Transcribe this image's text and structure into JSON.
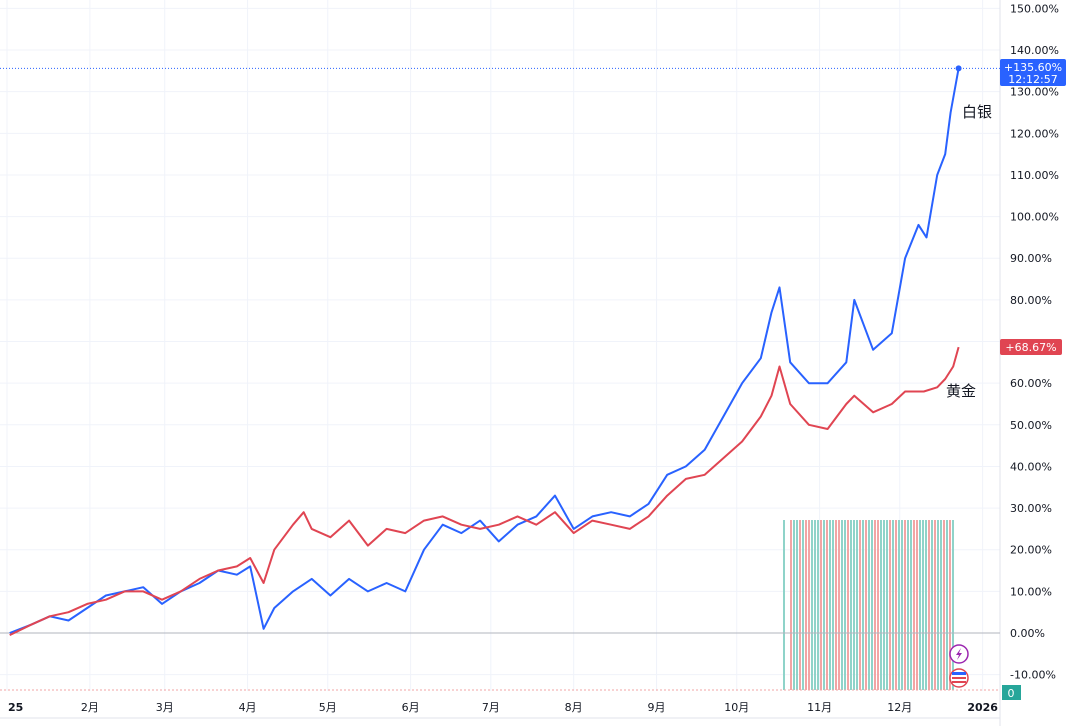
{
  "chart_data": {
    "type": "line",
    "title": "",
    "xlabel": "",
    "ylabel": "",
    "ylim": [
      -14,
      150
    ],
    "grid": true,
    "y_ticks": [
      "150.00%",
      "140.00%",
      "130.00%",
      "120.00%",
      "110.00%",
      "100.00%",
      "90.00%",
      "80.00%",
      "70.00%",
      "60.00%",
      "50.00%",
      "40.00%",
      "30.00%",
      "20.00%",
      "10.00%",
      "0.00%",
      "-10.00%"
    ],
    "y_tick_values": [
      150,
      140,
      130,
      120,
      110,
      100,
      90,
      80,
      70,
      60,
      50,
      40,
      30,
      20,
      10,
      0,
      -10
    ],
    "x_ticks": [
      {
        "label": "25",
        "date": "2025-01-01"
      },
      {
        "label": "2月",
        "date": "2025-02-01"
      },
      {
        "label": "3月",
        "date": "2025-03-01"
      },
      {
        "label": "4月",
        "date": "2025-04-01"
      },
      {
        "label": "5月",
        "date": "2025-05-01"
      },
      {
        "label": "6月",
        "date": "2025-06-01"
      },
      {
        "label": "7月",
        "date": "2025-07-01"
      },
      {
        "label": "8月",
        "date": "2025-08-01"
      },
      {
        "label": "9月",
        "date": "2025-09-01"
      },
      {
        "label": "10月",
        "date": "2025-10-01"
      },
      {
        "label": "11月",
        "date": "2025-11-01"
      },
      {
        "label": "12月",
        "date": "2025-12-01"
      },
      {
        "label": "2026",
        "date": "2026-01-01"
      }
    ],
    "series": [
      {
        "name": "白银",
        "color": "#2962ff",
        "last_label": "+135.60%",
        "last_time": "12:12:57",
        "dates": [
          "2025-01-02",
          "2025-01-10",
          "2025-01-17",
          "2025-01-24",
          "2025-01-31",
          "2025-02-07",
          "2025-02-14",
          "2025-02-21",
          "2025-02-28",
          "2025-03-07",
          "2025-03-14",
          "2025-03-21",
          "2025-03-28",
          "2025-04-02",
          "2025-04-04",
          "2025-04-07",
          "2025-04-11",
          "2025-04-18",
          "2025-04-25",
          "2025-05-02",
          "2025-05-09",
          "2025-05-16",
          "2025-05-23",
          "2025-05-30",
          "2025-06-06",
          "2025-06-13",
          "2025-06-20",
          "2025-06-27",
          "2025-07-04",
          "2025-07-11",
          "2025-07-18",
          "2025-07-25",
          "2025-08-01",
          "2025-08-08",
          "2025-08-15",
          "2025-08-22",
          "2025-08-29",
          "2025-09-05",
          "2025-09-12",
          "2025-09-19",
          "2025-09-26",
          "2025-10-03",
          "2025-10-10",
          "2025-10-14",
          "2025-10-17",
          "2025-10-21",
          "2025-10-28",
          "2025-11-04",
          "2025-11-11",
          "2025-11-14",
          "2025-11-21",
          "2025-11-28",
          "2025-12-03",
          "2025-12-08",
          "2025-12-11",
          "2025-12-15",
          "2025-12-18",
          "2025-12-20",
          "2025-12-23"
        ],
        "values": [
          0,
          2,
          4,
          3,
          6,
          9,
          10,
          11,
          7,
          10,
          12,
          15,
          14,
          16,
          10,
          1,
          6,
          10,
          13,
          9,
          13,
          10,
          12,
          10,
          20,
          26,
          24,
          27,
          22,
          26,
          28,
          33,
          25,
          28,
          29,
          28,
          31,
          38,
          40,
          44,
          52,
          60,
          66,
          77,
          83,
          65,
          60,
          60,
          65,
          80,
          68,
          72,
          90,
          98,
          95,
          110,
          115,
          125,
          135.6
        ]
      },
      {
        "name": "黄金",
        "color": "#e04552",
        "last_label": "+68.67%",
        "dates": [
          "2025-01-02",
          "2025-01-10",
          "2025-01-17",
          "2025-01-24",
          "2025-01-31",
          "2025-02-07",
          "2025-02-14",
          "2025-02-21",
          "2025-02-28",
          "2025-03-07",
          "2025-03-14",
          "2025-03-21",
          "2025-03-28",
          "2025-04-02",
          "2025-04-07",
          "2025-04-11",
          "2025-04-18",
          "2025-04-22",
          "2025-04-25",
          "2025-05-02",
          "2025-05-09",
          "2025-05-16",
          "2025-05-23",
          "2025-05-30",
          "2025-06-06",
          "2025-06-13",
          "2025-06-20",
          "2025-06-27",
          "2025-07-04",
          "2025-07-11",
          "2025-07-18",
          "2025-07-25",
          "2025-08-01",
          "2025-08-08",
          "2025-08-15",
          "2025-08-22",
          "2025-08-29",
          "2025-09-05",
          "2025-09-12",
          "2025-09-19",
          "2025-09-26",
          "2025-10-03",
          "2025-10-10",
          "2025-10-14",
          "2025-10-17",
          "2025-10-21",
          "2025-10-28",
          "2025-11-04",
          "2025-11-11",
          "2025-11-14",
          "2025-11-21",
          "2025-11-28",
          "2025-12-03",
          "2025-12-10",
          "2025-12-15",
          "2025-12-18",
          "2025-12-21",
          "2025-12-23"
        ],
        "values": [
          -0.5,
          2,
          4,
          5,
          7,
          8,
          10,
          10,
          8,
          10,
          13,
          15,
          16,
          18,
          12,
          20,
          26,
          29,
          25,
          23,
          27,
          21,
          25,
          24,
          27,
          28,
          26,
          25,
          26,
          28,
          26,
          29,
          24,
          27,
          26,
          25,
          28,
          33,
          37,
          38,
          42,
          46,
          52,
          57,
          64,
          55,
          50,
          49,
          55,
          57,
          53,
          55,
          58,
          58,
          59,
          61,
          64,
          68.67
        ]
      }
    ],
    "volume_colors": [
      "#8fd3c9",
      "#f2a5a5"
    ],
    "volume_counter": "0",
    "icons": [
      "lightning-icon",
      "us-flag-icon"
    ]
  }
}
